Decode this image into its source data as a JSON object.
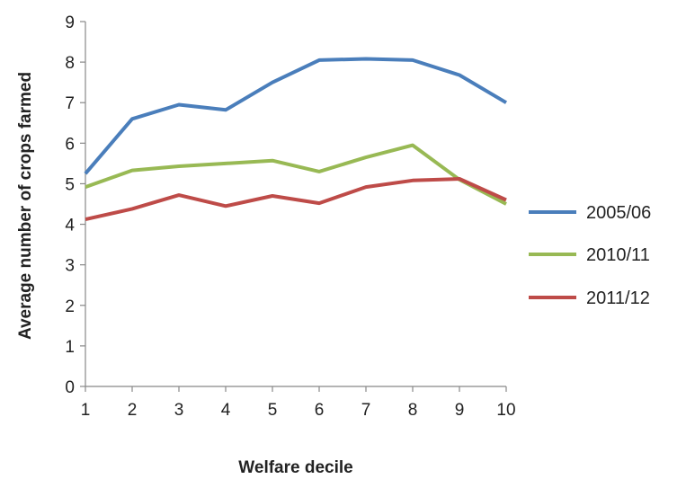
{
  "chart_data": {
    "type": "line",
    "title": "",
    "xlabel": "Welfare decile",
    "ylabel": "Average number of crops farmed",
    "x": [
      1,
      2,
      3,
      4,
      5,
      6,
      7,
      8,
      9,
      10
    ],
    "xlim": [
      1,
      10
    ],
    "ylim": [
      0,
      9
    ],
    "yticks": [
      0,
      1,
      2,
      3,
      4,
      5,
      6,
      7,
      8,
      9
    ],
    "grid": false,
    "legend_position": "right",
    "series": [
      {
        "name": "2005/06",
        "color": "#4a7ebb",
        "values": [
          5.25,
          6.6,
          6.95,
          6.82,
          7.5,
          8.05,
          8.08,
          8.05,
          7.68,
          7.0
        ]
      },
      {
        "name": "2010/11",
        "color": "#98b954",
        "values": [
          4.92,
          5.33,
          5.43,
          5.5,
          5.57,
          5.3,
          5.65,
          5.95,
          5.1,
          4.5
        ]
      },
      {
        "name": "2011/12",
        "color": "#be4b48",
        "values": [
          4.12,
          4.38,
          4.72,
          4.45,
          4.7,
          4.52,
          4.92,
          5.08,
          5.12,
          4.6
        ]
      }
    ]
  }
}
